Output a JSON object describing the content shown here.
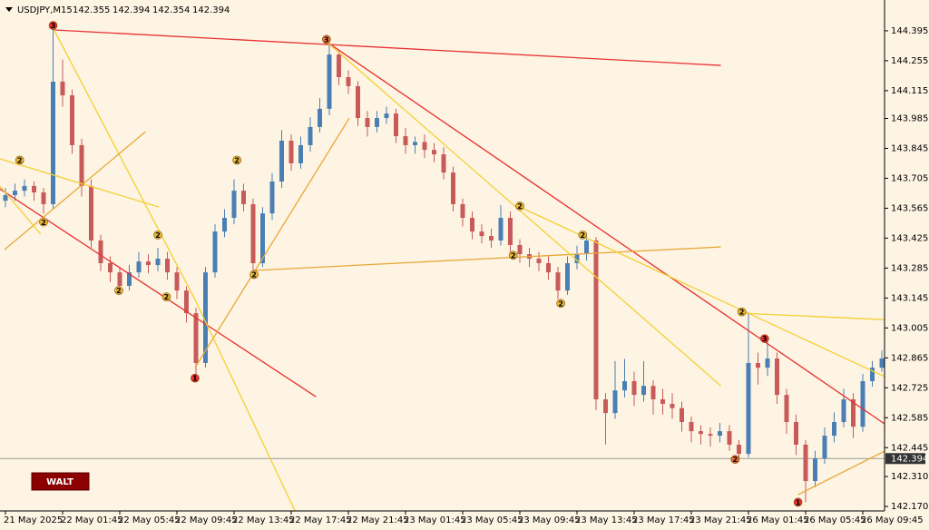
{
  "chart_data": {
    "type": "candlestick",
    "symbol": "USDJPY,M15",
    "header_ohlc": [
      142.355,
      142.394,
      142.354,
      142.394
    ],
    "current_price": 142.394,
    "categories": [
      "21 May 2025",
      null,
      null,
      null,
      null,
      null,
      "22 May 01:45",
      null,
      null,
      null,
      null,
      null,
      "22 May 05:45",
      null,
      null,
      null,
      null,
      null,
      "22 May 09:45",
      null,
      null,
      null,
      null,
      null,
      "22 May 13:45",
      null,
      null,
      null,
      null,
      null,
      "22 May 17:45",
      null,
      null,
      null,
      null,
      null,
      "22 May 21:45",
      null,
      null,
      null,
      null,
      null,
      "23 May 01:45",
      null,
      null,
      null,
      null,
      null,
      "23 May 05:45",
      null,
      null,
      null,
      null,
      null,
      "23 May 09:45",
      null,
      null,
      null,
      null,
      null,
      "23 May 13:45",
      null,
      null,
      null,
      null,
      null,
      "23 May 17:45",
      null,
      null,
      null,
      null,
      null,
      "23 May 21:45",
      null,
      null,
      null,
      null,
      null,
      "26 May 01:45",
      null,
      null,
      null,
      null,
      null,
      "26 May 05:45",
      null,
      null,
      null,
      null,
      null,
      "26 May 09:45",
      null,
      null
    ],
    "open": [
      143.6,
      143.626,
      143.647,
      143.669,
      143.639,
      143.584,
      144.157,
      144.093,
      143.86,
      143.669,
      143.414,
      143.308,
      143.265,
      143.202,
      143.265,
      143.316,
      143.299,
      143.329,
      143.265,
      143.18,
      143.074,
      142.841,
      143.265,
      143.456,
      143.52,
      143.647,
      143.584,
      143.308,
      143.541,
      143.69,
      143.881,
      143.775,
      143.86,
      143.945,
      144.03,
      144.284,
      144.178,
      144.136,
      143.987,
      143.945,
      143.987,
      144.008,
      143.902,
      143.86,
      143.875,
      143.838,
      143.817,
      143.732,
      143.584,
      143.52,
      143.456,
      143.435,
      143.414,
      143.52,
      143.393,
      143.35,
      143.329,
      143.308,
      143.265,
      143.18,
      143.308,
      143.35,
      143.414,
      142.671,
      142.607,
      142.713,
      142.756,
      142.692,
      142.734,
      142.671,
      142.65,
      142.63,
      142.565,
      142.522,
      142.509,
      142.501,
      142.522,
      142.459,
      142.416,
      142.841,
      142.819,
      142.862,
      142.692,
      142.565,
      142.459,
      142.289,
      142.395,
      142.501,
      142.565,
      142.671,
      142.543,
      142.756,
      142.819
    ],
    "high": [
      143.66,
      143.68,
      143.7,
      143.69,
      143.66,
      144.42,
      144.26,
      144.12,
      143.89,
      143.7,
      143.44,
      143.34,
      143.29,
      143.3,
      143.36,
      143.35,
      143.38,
      143.36,
      143.29,
      143.2,
      143.1,
      143.29,
      143.49,
      143.56,
      143.7,
      143.68,
      143.61,
      143.57,
      143.73,
      143.93,
      143.91,
      143.9,
      143.99,
      144.08,
      144.33,
      144.3,
      144.21,
      144.16,
      144.02,
      144.02,
      144.04,
      144.03,
      143.94,
      143.9,
      143.91,
      143.87,
      143.85,
      143.76,
      143.61,
      143.55,
      143.49,
      143.47,
      143.58,
      143.55,
      143.42,
      143.38,
      143.36,
      143.34,
      143.29,
      143.34,
      143.39,
      143.44,
      143.43,
      142.7,
      142.85,
      142.86,
      142.8,
      142.85,
      142.76,
      142.72,
      142.7,
      142.66,
      142.59,
      142.55,
      142.54,
      142.56,
      142.55,
      142.48,
      143.08,
      142.89,
      142.94,
      142.89,
      142.72,
      142.6,
      142.48,
      142.43,
      142.54,
      142.61,
      142.72,
      142.7,
      142.79,
      142.85,
      142.9
    ],
    "low": [
      143.57,
      143.6,
      143.62,
      143.6,
      143.54,
      143.56,
      144.04,
      143.82,
      143.62,
      143.38,
      143.27,
      143.22,
      143.16,
      143.18,
      143.24,
      143.26,
      143.27,
      143.23,
      143.14,
      143.03,
      142.77,
      142.82,
      143.24,
      143.43,
      143.49,
      143.55,
      143.27,
      143.29,
      143.51,
      143.66,
      143.74,
      143.75,
      143.83,
      143.92,
      144.0,
      144.14,
      144.1,
      143.95,
      143.9,
      143.92,
      143.96,
      143.87,
      143.82,
      143.82,
      143.8,
      143.78,
      143.7,
      143.55,
      143.48,
      143.42,
      143.4,
      143.38,
      143.39,
      143.36,
      143.31,
      143.29,
      143.27,
      143.23,
      143.14,
      143.16,
      143.28,
      143.32,
      142.62,
      142.46,
      142.58,
      142.68,
      142.64,
      142.66,
      142.6,
      142.6,
      142.58,
      142.52,
      142.47,
      142.46,
      142.45,
      142.47,
      142.43,
      142.38,
      142.4,
      142.74,
      142.78,
      142.65,
      142.51,
      142.41,
      142.19,
      142.26,
      142.37,
      142.47,
      142.54,
      142.49,
      142.52,
      142.73,
      142.8
    ],
    "close": [
      143.626,
      143.647,
      143.669,
      143.639,
      143.584,
      144.157,
      144.093,
      143.86,
      143.669,
      143.414,
      143.308,
      143.265,
      143.202,
      143.265,
      143.316,
      143.299,
      143.329,
      143.265,
      143.18,
      143.074,
      142.841,
      143.265,
      143.456,
      143.52,
      143.647,
      143.584,
      143.308,
      143.541,
      143.69,
      143.881,
      143.775,
      143.86,
      143.945,
      144.03,
      144.284,
      144.178,
      144.136,
      143.987,
      143.945,
      143.987,
      144.008,
      143.902,
      143.86,
      143.875,
      143.838,
      143.817,
      143.732,
      143.584,
      143.52,
      143.456,
      143.435,
      143.414,
      143.52,
      143.393,
      143.35,
      143.329,
      143.308,
      143.265,
      143.18,
      143.308,
      143.35,
      143.414,
      142.671,
      142.607,
      142.713,
      142.756,
      142.692,
      142.734,
      142.671,
      142.65,
      142.63,
      142.565,
      142.522,
      142.509,
      142.501,
      142.522,
      142.459,
      142.416,
      142.841,
      142.819,
      142.862,
      142.692,
      142.565,
      142.459,
      142.289,
      142.395,
      142.501,
      142.565,
      142.671,
      142.543,
      142.756,
      142.819,
      142.862
    ],
    "up_color": "#4a7fb5",
    "down_color": "#c85a5a",
    "ylim": [
      142.149,
      144.539
    ],
    "yticks": [
      144.395,
      144.255,
      144.115,
      143.985,
      143.845,
      143.705,
      143.565,
      143.425,
      143.285,
      143.145,
      143.005,
      142.865,
      142.725,
      142.585,
      142.445,
      {
        "value": 142.31,
        "label": "142.310"
      },
      {
        "value": 142.17,
        "label": "142.170"
      }
    ],
    "trendlines": [
      {
        "x": [
          5.1,
          75.1
        ],
        "y": [
          144.399,
          144.233
        ],
        "color": "#e83030"
      },
      {
        "x": [
          -0.6,
          32.6
        ],
        "y": [
          143.656,
          142.683
        ],
        "color": "#e83030"
      },
      {
        "x": [
          33.7,
          92.3
        ],
        "y": [
          144.344,
          142.556
        ],
        "color": "#e83030"
      },
      {
        "x": [
          5.1,
          19.9
        ],
        "y": [
          144.399,
          143.138
        ],
        "color": "#f5d033"
      },
      {
        "x": [
          -0.6,
          16.1
        ],
        "y": [
          143.796,
          143.571
        ],
        "color": "#f5d033"
      },
      {
        "x": [
          -0.1,
          14.7
        ],
        "y": [
          143.371,
          143.923
        ],
        "color": "#e8a838"
      },
      {
        "x": [
          19.9,
          36.1
        ],
        "y": [
          142.819,
          143.987
        ],
        "color": "#e8a838"
      },
      {
        "x": [
          26.1,
          75.1
        ],
        "y": [
          143.274,
          143.384
        ],
        "color": "#e8a838"
      },
      {
        "x": [
          33.7,
          75.1
        ],
        "y": [
          144.344,
          142.734
        ],
        "color": "#f5d033"
      },
      {
        "x": [
          54,
          92.3
        ],
        "y": [
          143.571,
          142.777
        ],
        "color": "#f5d033"
      },
      {
        "x": [
          77.3,
          92.3
        ],
        "y": [
          143.074,
          143.044
        ],
        "color": "#f5d033"
      },
      {
        "x": [
          19.9,
          30.4
        ],
        "y": [
          143.138,
          142.149
        ],
        "color": "#f5d033"
      },
      {
        "x": [
          83.2,
          92.3
        ],
        "y": [
          142.225,
          142.429
        ],
        "color": "#e8a838"
      },
      {
        "x": [
          -0.6,
          3.7
        ],
        "y": [
          143.669,
          143.444
        ],
        "color": "#f5d033"
      }
    ],
    "markers": [
      {
        "x": 5,
        "y": 144.42,
        "label": "3",
        "color": "#e83030"
      },
      {
        "x": 33.7,
        "y": 144.355,
        "label": "3",
        "color": "#e8703a"
      },
      {
        "x": 1.5,
        "y": 143.79,
        "label": "2",
        "color": "#e8b838"
      },
      {
        "x": 4,
        "y": 143.5,
        "label": "2",
        "color": "#e8b838"
      },
      {
        "x": 11.9,
        "y": 143.18,
        "label": "2",
        "color": "#e8b838"
      },
      {
        "x": 16,
        "y": 143.44,
        "label": "2",
        "color": "#e8b838"
      },
      {
        "x": 16.9,
        "y": 143.15,
        "label": "2",
        "color": "#e8b838"
      },
      {
        "x": 19.9,
        "y": 142.77,
        "label": "1",
        "color": "#e83030"
      },
      {
        "x": 24.3,
        "y": 143.79,
        "label": "2",
        "color": "#e8b838"
      },
      {
        "x": 26.1,
        "y": 143.255,
        "label": "2",
        "color": "#e8b838"
      },
      {
        "x": 54,
        "y": 143.575,
        "label": "2",
        "color": "#e8b838"
      },
      {
        "x": 53.3,
        "y": 143.345,
        "label": "2",
        "color": "#e8b838"
      },
      {
        "x": 58.3,
        "y": 143.12,
        "label": "2",
        "color": "#e8b838"
      },
      {
        "x": 60.6,
        "y": 143.44,
        "label": "2",
        "color": "#e8b838"
      },
      {
        "x": 77.3,
        "y": 143.08,
        "label": "2",
        "color": "#e8b838"
      },
      {
        "x": 79.7,
        "y": 142.955,
        "label": "3",
        "color": "#e83030"
      },
      {
        "x": 76.6,
        "y": 142.39,
        "label": "2",
        "color": "#e8703a"
      },
      {
        "x": 83.2,
        "y": 142.19,
        "label": "1",
        "color": "#e83030"
      }
    ],
    "button": "WALT"
  }
}
